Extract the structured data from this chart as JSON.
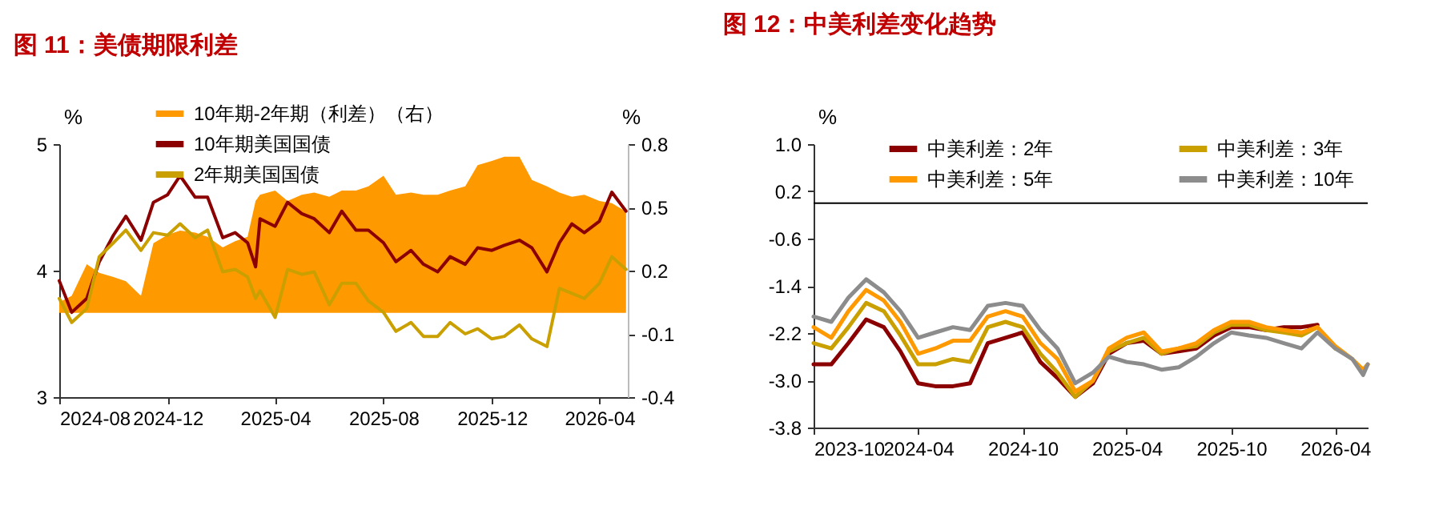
{
  "chart_data": [
    {
      "type": "line",
      "title": "图 11：美债期限利差",
      "ylabel": "%",
      "y2label": "%",
      "legend": "top",
      "x": [
        "2024-08-01",
        "2024-08-15",
        "2024-09-01",
        "2024-09-15",
        "2024-10-01",
        "2024-10-15",
        "2024-11-01",
        "2024-11-15",
        "2024-12-01",
        "2024-12-15",
        "2025-01-01",
        "2025-01-15",
        "2025-02-01",
        "2025-02-15",
        "2025-03-01",
        "2025-03-10",
        "2025-03-15",
        "2025-04-01",
        "2025-04-15",
        "2025-05-01",
        "2025-05-15",
        "2025-06-01",
        "2025-06-15",
        "2025-07-01",
        "2025-07-15",
        "2025-08-01",
        "2025-08-15",
        "2025-09-01",
        "2025-09-15",
        "2025-10-01",
        "2025-10-15",
        "2025-11-01",
        "2025-11-15",
        "2025-12-01",
        "2025-12-15",
        "2026-01-01",
        "2026-01-15",
        "2026-02-01",
        "2026-02-15",
        "2026-03-01",
        "2026-03-15",
        "2026-04-01",
        "2026-04-15",
        "2026-05-01"
      ],
      "xlim": [
        "2024-08-01",
        "2026-05-03"
      ],
      "xticks": [
        "2024-08",
        "2024-12",
        "2025-04",
        "2025-08",
        "2025-12",
        "2026-04"
      ],
      "ylim": [
        3,
        5
      ],
      "yticks": [
        3,
        4,
        5
      ],
      "y2lim": [
        -0.4,
        0.8
      ],
      "y2ticks": [
        -0.4,
        -0.1,
        0.2,
        0.5,
        0.8
      ],
      "series": [
        {
          "name": "10年期-2年期（利差）（右）",
          "type": "area",
          "axis": "y2",
          "color": "#ff9900",
          "values": [
            0.05,
            0.08,
            0.23,
            0.19,
            0.17,
            0.15,
            0.08,
            0.33,
            0.37,
            0.39,
            0.38,
            0.36,
            0.31,
            0.34,
            0.36,
            0.53,
            0.56,
            0.58,
            0.53,
            0.56,
            0.57,
            0.55,
            0.58,
            0.58,
            0.6,
            0.65,
            0.56,
            0.57,
            0.56,
            0.56,
            0.58,
            0.6,
            0.7,
            0.72,
            0.74,
            0.74,
            0.63,
            0.6,
            0.57,
            0.55,
            0.56,
            0.53,
            0.52,
            0.48
          ]
        },
        {
          "name": "10年期美国国债",
          "color": "#8b0000",
          "values": [
            3.92,
            3.67,
            3.78,
            4.07,
            4.28,
            4.43,
            4.24,
            4.54,
            4.6,
            4.75,
            4.58,
            4.58,
            4.26,
            4.3,
            4.22,
            4.03,
            4.41,
            4.35,
            4.54,
            4.45,
            4.41,
            4.3,
            4.47,
            4.32,
            4.32,
            4.22,
            4.07,
            4.16,
            4.05,
            3.99,
            4.11,
            4.05,
            4.18,
            4.16,
            4.2,
            4.24,
            4.18,
            3.99,
            4.22,
            4.37,
            4.3,
            4.39,
            4.62,
            4.47
          ]
        },
        {
          "name": "2年期美国国债",
          "color": "#c9a000",
          "values": [
            3.78,
            3.59,
            3.7,
            4.11,
            4.22,
            4.32,
            4.16,
            4.3,
            4.28,
            4.37,
            4.26,
            4.32,
            3.99,
            4.01,
            3.95,
            3.78,
            3.84,
            3.63,
            4.01,
            3.97,
            3.99,
            3.73,
            3.9,
            3.9,
            3.76,
            3.67,
            3.52,
            3.59,
            3.48,
            3.48,
            3.59,
            3.5,
            3.54,
            3.46,
            3.48,
            3.57,
            3.46,
            3.4,
            3.86,
            3.82,
            3.78,
            3.9,
            4.11,
            4.01
          ]
        }
      ]
    },
    {
      "type": "line",
      "title": "图 12：中美利差变化趋势",
      "ylabel": "%",
      "legend": "top",
      "x": [
        "2023-10-01",
        "2023-11-01",
        "2023-12-01",
        "2024-01-01",
        "2024-02-01",
        "2024-03-01",
        "2024-04-01",
        "2024-05-01",
        "2024-06-01",
        "2024-07-01",
        "2024-08-01",
        "2024-09-01",
        "2024-10-01",
        "2024-11-01",
        "2024-12-01",
        "2025-01-01",
        "2025-02-01",
        "2025-03-01",
        "2025-04-01",
        "2025-05-01",
        "2025-06-01",
        "2025-07-01",
        "2025-08-01",
        "2025-09-01",
        "2025-10-01",
        "2025-11-01",
        "2025-12-01",
        "2026-01-01",
        "2026-02-01",
        "2026-03-01",
        "2026-04-01",
        "2026-05-01",
        "2026-05-20",
        "2026-05-28"
      ],
      "xlim": [
        "2023-10-01",
        "2026-05-28"
      ],
      "xticks": [
        "2023-10",
        "2024-04",
        "2024-10",
        "2025-04",
        "2025-10",
        "2026-04"
      ],
      "ylim": [
        -3.8,
        1
      ],
      "yticks": [
        {
          "value": 1,
          "label": "1.0"
        },
        0.2,
        -0.6,
        -1.4,
        -2.2,
        {
          "value": -3,
          "label": "-3.0"
        },
        -3.8
      ],
      "ref_lines": [
        {
          "axis": "y",
          "value": 0
        }
      ],
      "series": [
        {
          "name": "中美利差：2年",
          "color": "#8b0000",
          "values": [
            -2.73,
            -2.73,
            -2.37,
            -1.97,
            -2.1,
            -2.51,
            -3.05,
            -3.1,
            -3.1,
            -3.05,
            -2.37,
            -2.28,
            -2.19,
            -2.69,
            -2.96,
            -3.28,
            -3.05,
            -2.55,
            -2.37,
            -2.33,
            -2.55,
            -2.51,
            -2.46,
            -2.24,
            -2.1,
            -2.1,
            -2.15,
            -2.1,
            -2.1,
            -2.06,
            null,
            null,
            null,
            null
          ]
        },
        {
          "name": "中美利差：3年",
          "color": "#c9a000",
          "values": [
            -2.37,
            -2.46,
            -2.1,
            -1.69,
            -1.83,
            -2.24,
            -2.73,
            -2.73,
            -2.64,
            -2.69,
            -2.1,
            -2.01,
            -2.1,
            -2.55,
            -2.87,
            -3.28,
            -3.01,
            -2.51,
            -2.37,
            -2.28,
            -2.55,
            -2.46,
            -2.42,
            -2.19,
            -2.06,
            -2.06,
            -2.15,
            -2.19,
            -2.24,
            -2.1,
            -2.46,
            null,
            null,
            null
          ]
        },
        {
          "name": "中美利差：5年",
          "color": "#ff9900",
          "values": [
            -2.1,
            -2.28,
            -1.83,
            -1.47,
            -1.65,
            -2.01,
            -2.55,
            -2.46,
            -2.33,
            -2.33,
            -1.92,
            -1.83,
            -1.92,
            -2.37,
            -2.64,
            -3.19,
            -3.01,
            -2.46,
            -2.28,
            -2.19,
            -2.51,
            -2.46,
            -2.37,
            -2.15,
            -2.01,
            -2.01,
            -2.1,
            -2.15,
            -2.19,
            -2.1,
            -2.42,
            -2.64,
            -2.82,
            -2.73
          ]
        },
        {
          "name": "中美利差：10年",
          "color": "#8c8c8c",
          "values": [
            -1.92,
            -2.01,
            -1.6,
            -1.29,
            -1.51,
            -1.83,
            -2.28,
            -2.19,
            -2.1,
            -2.15,
            -1.74,
            -1.69,
            -1.74,
            -2.15,
            -2.46,
            -3.05,
            -2.87,
            -2.6,
            -2.69,
            -2.73,
            -2.82,
            -2.78,
            -2.6,
            -2.37,
            -2.19,
            -2.24,
            -2.28,
            -2.37,
            -2.46,
            -2.19,
            -2.46,
            -2.64,
            -2.91,
            -2.73
          ]
        }
      ]
    }
  ]
}
